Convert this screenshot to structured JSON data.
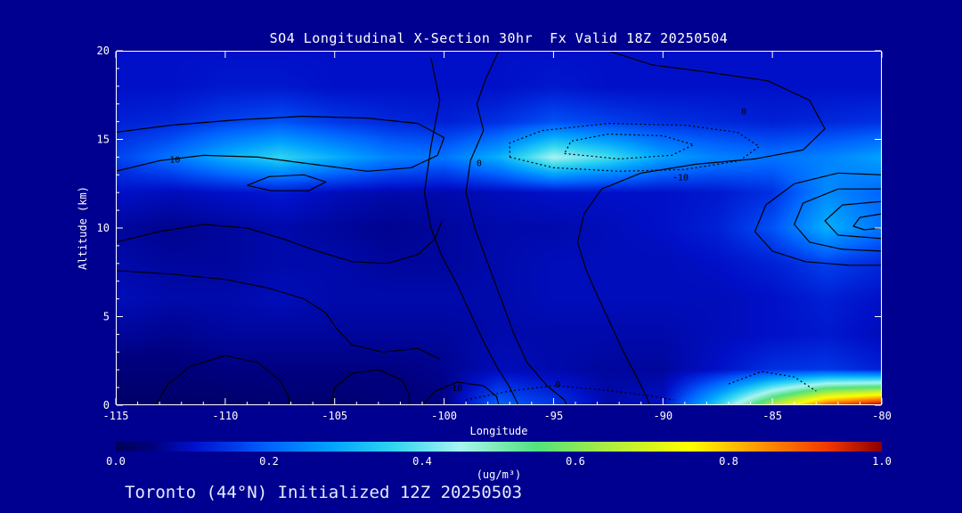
{
  "title": "SO4 Longitudinal X-Section 30hr  Fx Valid 18Z 20250504",
  "footer": "Toronto (44°N) Initialized 12Z 20250503",
  "colors": {
    "background": "#000090",
    "text": "#FFFFFF",
    "footer_text": "#E6ECFF",
    "contour": "#000000"
  },
  "chart_data": {
    "type": "heatmap",
    "title": "SO4 Longitudinal X-Section 30hr  Fx Valid 18Z 20250504",
    "xlabel": "Longitude",
    "ylabel": "Altitude (km)",
    "colorbar_label": "(ug/m³)",
    "xlim": [
      -115,
      -80
    ],
    "ylim": [
      0,
      20
    ],
    "clim": [
      0,
      1
    ],
    "x_ticks": [
      -115,
      -110,
      -105,
      -100,
      -95,
      -90,
      -85,
      -80
    ],
    "y_ticks": [
      0,
      5,
      10,
      15,
      20
    ],
    "colorbar_ticks": [
      "0.0",
      "0.2",
      "0.4",
      "0.6",
      "0.8",
      "1.0"
    ],
    "grid": {
      "lons": [
        -115,
        -112.5,
        -110,
        -107.5,
        -105,
        -102.5,
        -100,
        -97.5,
        -95,
        -92.5,
        -90,
        -87.5,
        -85,
        -82.5,
        -80
      ],
      "alts": [
        0,
        2,
        4,
        6,
        8,
        10,
        12,
        14,
        16,
        18,
        20
      ],
      "values": [
        [
          0.02,
          0.02,
          0.02,
          0.03,
          0.03,
          0.04,
          0.05,
          0.2,
          0.15,
          0.08,
          0.1,
          0.35,
          0.65,
          0.9,
          1.0
        ],
        [
          0.04,
          0.04,
          0.05,
          0.05,
          0.05,
          0.05,
          0.06,
          0.09,
          0.08,
          0.07,
          0.07,
          0.1,
          0.14,
          0.15,
          0.12
        ],
        [
          0.07,
          0.06,
          0.07,
          0.07,
          0.07,
          0.07,
          0.07,
          0.08,
          0.08,
          0.08,
          0.08,
          0.09,
          0.1,
          0.11,
          0.09
        ],
        [
          0.09,
          0.08,
          0.08,
          0.09,
          0.08,
          0.08,
          0.08,
          0.08,
          0.09,
          0.09,
          0.09,
          0.09,
          0.1,
          0.12,
          0.1
        ],
        [
          0.08,
          0.07,
          0.07,
          0.08,
          0.08,
          0.07,
          0.07,
          0.08,
          0.09,
          0.09,
          0.09,
          0.1,
          0.12,
          0.16,
          0.13
        ],
        [
          0.07,
          0.06,
          0.07,
          0.08,
          0.07,
          0.06,
          0.07,
          0.08,
          0.08,
          0.09,
          0.1,
          0.12,
          0.18,
          0.3,
          0.22
        ],
        [
          0.1,
          0.09,
          0.1,
          0.11,
          0.09,
          0.08,
          0.08,
          0.09,
          0.1,
          0.1,
          0.1,
          0.11,
          0.14,
          0.25,
          0.2
        ],
        [
          0.16,
          0.22,
          0.3,
          0.36,
          0.3,
          0.24,
          0.22,
          0.3,
          0.45,
          0.38,
          0.28,
          0.24,
          0.22,
          0.24,
          0.28
        ],
        [
          0.12,
          0.13,
          0.16,
          0.18,
          0.15,
          0.13,
          0.12,
          0.14,
          0.18,
          0.16,
          0.14,
          0.13,
          0.12,
          0.13,
          0.14
        ],
        [
          0.1,
          0.1,
          0.11,
          0.11,
          0.1,
          0.1,
          0.1,
          0.1,
          0.11,
          0.1,
          0.1,
          0.1,
          0.1,
          0.1,
          0.1
        ],
        [
          0.1,
          0.1,
          0.1,
          0.1,
          0.1,
          0.1,
          0.1,
          0.1,
          0.1,
          0.1,
          0.1,
          0.1,
          0.1,
          0.1,
          0.1
        ]
      ]
    },
    "colormap": [
      [
        0.0,
        "#00005A"
      ],
      [
        0.05,
        "#000080"
      ],
      [
        0.1,
        "#0010C8"
      ],
      [
        0.15,
        "#0038E8"
      ],
      [
        0.2,
        "#0064FF"
      ],
      [
        0.28,
        "#00A2FF"
      ],
      [
        0.36,
        "#2FD4F0"
      ],
      [
        0.45,
        "#A8F4F0"
      ],
      [
        0.55,
        "#52E27E"
      ],
      [
        0.65,
        "#B4EE3C"
      ],
      [
        0.75,
        "#FFFF00"
      ],
      [
        0.85,
        "#FF8C00"
      ],
      [
        0.93,
        "#F03800"
      ],
      [
        1.0,
        "#8B0000"
      ]
    ],
    "contours": [
      {
        "style": "solid",
        "points": [
          [
            -115,
            13.2
          ],
          [
            -113,
            13.8
          ],
          [
            -111,
            14.1
          ],
          [
            -108.5,
            14.0
          ],
          [
            -106,
            13.6
          ],
          [
            -103.5,
            13.2
          ],
          [
            -101.5,
            13.4
          ],
          [
            -100.3,
            14.1
          ],
          [
            -100,
            15.1
          ],
          [
            -101.2,
            15.9
          ],
          [
            -103.5,
            16.2
          ],
          [
            -106.5,
            16.3
          ],
          [
            -109.5,
            16.1
          ],
          [
            -112.5,
            15.8
          ],
          [
            -115,
            15.4
          ]
        ]
      },
      {
        "style": "solid",
        "points": [
          [
            -97.5,
            20
          ],
          [
            -98.1,
            18.4
          ],
          [
            -98.5,
            17.0
          ],
          [
            -98.2,
            15.5
          ],
          [
            -98.8,
            13.8
          ],
          [
            -99.0,
            12.0
          ],
          [
            -98.6,
            10.0
          ],
          [
            -98.0,
            8.0
          ],
          [
            -97.4,
            6.0
          ],
          [
            -96.8,
            4.0
          ],
          [
            -96.2,
            2.4
          ],
          [
            -95.3,
            1.1
          ],
          [
            -94.5,
            0.3
          ],
          [
            -94.4,
            0
          ]
        ]
      },
      {
        "style": "solid",
        "points": [
          [
            -100.6,
            19.6
          ],
          [
            -100.2,
            17.2
          ],
          [
            -100.6,
            14.6
          ],
          [
            -100.9,
            12.0
          ],
          [
            -100.6,
            10.0
          ],
          [
            -100.1,
            8.4
          ],
          [
            -99.4,
            6.8
          ],
          [
            -98.8,
            5.2
          ],
          [
            -98.2,
            3.6
          ],
          [
            -97.6,
            2.2
          ],
          [
            -97.0,
            1.0
          ],
          [
            -96.6,
            0
          ]
        ]
      },
      {
        "style": "solid",
        "points": [
          [
            -92.5,
            20
          ],
          [
            -90.5,
            19.2
          ],
          [
            -88,
            18.8
          ],
          [
            -85.2,
            18.3
          ],
          [
            -83.3,
            17.2
          ],
          [
            -82.6,
            15.6
          ],
          [
            -83.6,
            14.4
          ],
          [
            -85.8,
            13.9
          ],
          [
            -88.5,
            13.6
          ],
          [
            -91,
            13.1
          ],
          [
            -92.8,
            12.2
          ],
          [
            -93.6,
            10.8
          ],
          [
            -93.9,
            9.2
          ],
          [
            -93.5,
            7.6
          ],
          [
            -93,
            6.2
          ],
          [
            -92.4,
            4.6
          ],
          [
            -91.8,
            3.0
          ],
          [
            -91.2,
            1.6
          ],
          [
            -90.8,
            0.6
          ],
          [
            -90.6,
            0
          ]
        ]
      },
      {
        "style": "solid",
        "points": [
          [
            -115,
            9.2
          ],
          [
            -113,
            9.8
          ],
          [
            -111,
            10.2
          ],
          [
            -109,
            10.0
          ],
          [
            -107.4,
            9.4
          ],
          [
            -105.8,
            8.7
          ],
          [
            -104.2,
            8.1
          ],
          [
            -102.6,
            8.0
          ],
          [
            -101.2,
            8.5
          ],
          [
            -100.4,
            9.4
          ],
          [
            -100.1,
            10.4
          ]
        ]
      },
      {
        "style": "solid",
        "points": [
          [
            -115,
            7.6
          ],
          [
            -112.5,
            7.4
          ],
          [
            -110,
            7.1
          ],
          [
            -108,
            6.6
          ],
          [
            -106.4,
            6.0
          ],
          [
            -105.4,
            5.2
          ],
          [
            -104.9,
            4.3
          ],
          [
            -104.2,
            3.4
          ],
          [
            -102.8,
            3.0
          ],
          [
            -101.2,
            3.2
          ],
          [
            -100.2,
            2.6
          ]
        ]
      },
      {
        "style": "solid",
        "points": [
          [
            -109,
            12.4
          ],
          [
            -108,
            12.9
          ],
          [
            -106.4,
            13.0
          ],
          [
            -105.4,
            12.6
          ],
          [
            -106.2,
            12.1
          ],
          [
            -107.9,
            12.1
          ],
          [
            -109,
            12.4
          ]
        ]
      },
      {
        "style": "solid",
        "points": [
          [
            -113.2,
            0
          ],
          [
            -112.6,
            1.2
          ],
          [
            -111.6,
            2.2
          ],
          [
            -110,
            2.8
          ],
          [
            -108.5,
            2.4
          ],
          [
            -107.5,
            1.4
          ],
          [
            -107.1,
            0.5
          ],
          [
            -107.1,
            0
          ]
        ]
      },
      {
        "style": "solid",
        "points": [
          [
            -105.2,
            0
          ],
          [
            -105.0,
            1.0
          ],
          [
            -104.2,
            1.8
          ],
          [
            -103,
            2.0
          ],
          [
            -101.9,
            1.4
          ],
          [
            -101.6,
            0.6
          ],
          [
            -101.6,
            0
          ]
        ]
      },
      {
        "style": "solid",
        "points": [
          [
            -101,
            0
          ],
          [
            -100.4,
            0.8
          ],
          [
            -99.4,
            1.3
          ],
          [
            -98.2,
            1.1
          ],
          [
            -97.6,
            0.5
          ],
          [
            -97.5,
            0
          ]
        ]
      },
      {
        "style": "solid",
        "points": [
          [
            -80,
            13.0
          ],
          [
            -82,
            13.1
          ],
          [
            -84,
            12.5
          ],
          [
            -85.3,
            11.3
          ],
          [
            -85.8,
            9.8
          ],
          [
            -85,
            8.7
          ],
          [
            -83.5,
            8.1
          ],
          [
            -81.5,
            7.9
          ],
          [
            -80,
            7.9
          ]
        ]
      },
      {
        "style": "solid",
        "points": [
          [
            -80,
            12.2
          ],
          [
            -82,
            12.2
          ],
          [
            -83.6,
            11.4
          ],
          [
            -84,
            10.2
          ],
          [
            -83.3,
            9.2
          ],
          [
            -81.8,
            8.8
          ],
          [
            -80,
            8.7
          ]
        ]
      },
      {
        "style": "solid",
        "points": [
          [
            -80,
            11.5
          ],
          [
            -81.8,
            11.3
          ],
          [
            -82.6,
            10.4
          ],
          [
            -82,
            9.6
          ],
          [
            -80,
            9.4
          ]
        ]
      },
      {
        "style": "solid",
        "points": [
          [
            -80,
            10.8
          ],
          [
            -81,
            10.6
          ],
          [
            -81.3,
            10.1
          ],
          [
            -80.8,
            9.9
          ],
          [
            -80,
            10.0
          ]
        ]
      },
      {
        "style": "dotted",
        "points": [
          [
            -97,
            14.0
          ],
          [
            -95,
            13.4
          ],
          [
            -92,
            13.2
          ],
          [
            -89,
            13.3
          ],
          [
            -86.5,
            13.8
          ],
          [
            -85.6,
            14.6
          ],
          [
            -86.6,
            15.4
          ],
          [
            -89,
            15.8
          ],
          [
            -92.5,
            15.9
          ],
          [
            -95.5,
            15.5
          ],
          [
            -97,
            14.8
          ],
          [
            -97,
            14.0
          ]
        ]
      },
      {
        "style": "dotted",
        "points": [
          [
            -94.5,
            14.2
          ],
          [
            -92,
            13.9
          ],
          [
            -89.6,
            14.1
          ],
          [
            -88.6,
            14.7
          ],
          [
            -90,
            15.2
          ],
          [
            -92.5,
            15.3
          ],
          [
            -94.2,
            14.9
          ],
          [
            -94.5,
            14.2
          ]
        ]
      },
      {
        "style": "dotted",
        "points": [
          [
            -99,
            0.3
          ],
          [
            -97,
            0.8
          ],
          [
            -95,
            1.1
          ],
          [
            -93,
            0.9
          ],
          [
            -91,
            0.6
          ],
          [
            -89.5,
            0.3
          ]
        ]
      },
      {
        "style": "dotted",
        "points": [
          [
            -87,
            1.2
          ],
          [
            -85.5,
            1.9
          ],
          [
            -84,
            1.6
          ],
          [
            -83,
            0.8
          ]
        ]
      }
    ],
    "contour_labels": [
      {
        "text": "10",
        "lon": -112.3,
        "alt": 13.7
      },
      {
        "text": "0",
        "lon": -98.4,
        "alt": 13.5
      },
      {
        "text": "0",
        "lon": -86.3,
        "alt": 16.4
      },
      {
        "text": "-10",
        "lon": -89.2,
        "alt": 12.7
      },
      {
        "text": "10",
        "lon": -99.4,
        "alt": 0.8
      },
      {
        "text": "0",
        "lon": -94.8,
        "alt": 1.0
      }
    ]
  }
}
